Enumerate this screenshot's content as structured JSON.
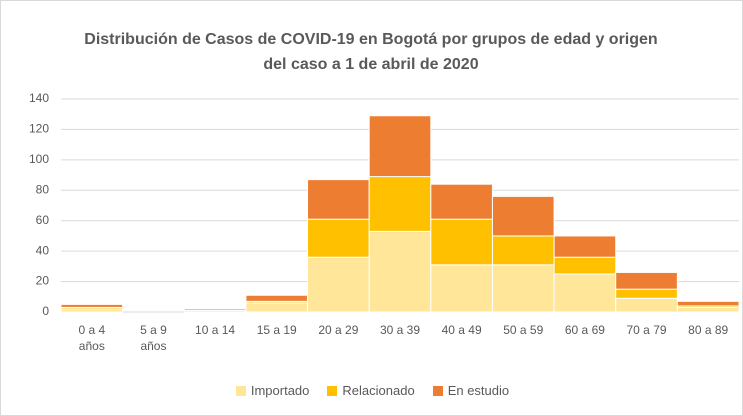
{
  "chart_data": {
    "type": "stacked_bar",
    "title": "Distribución de Casos de COVID-19 en Bogotá por grupos de edad y origen del caso a 1 de abril de 2020",
    "categories": [
      "0 a 4 años",
      "5 a 9 años",
      "10 a 14",
      "15 a 19",
      "20 a 29",
      "30 a 39",
      "40 a 49",
      "50 a 59",
      "60 a 69",
      "70 a 79",
      "80 a 89"
    ],
    "series": [
      {
        "name": "Importado",
        "color": "#ffe699",
        "values": [
          2,
          0,
          1,
          6,
          36,
          53,
          31,
          31,
          25,
          9,
          3
        ]
      },
      {
        "name": "Relacionado",
        "color": "#ffc000",
        "values": [
          1,
          0,
          0,
          1,
          25,
          36,
          30,
          19,
          11,
          6,
          1
        ]
      },
      {
        "name": "En estudio",
        "color": "#ed7d31",
        "values": [
          2,
          0,
          1,
          4,
          26,
          40,
          23,
          26,
          14,
          11,
          3
        ]
      }
    ],
    "ylim": [
      0,
      140
    ],
    "yticks": [
      0,
      20,
      40,
      60,
      80,
      100,
      120,
      140
    ],
    "grid": true,
    "legend": "bottom"
  }
}
